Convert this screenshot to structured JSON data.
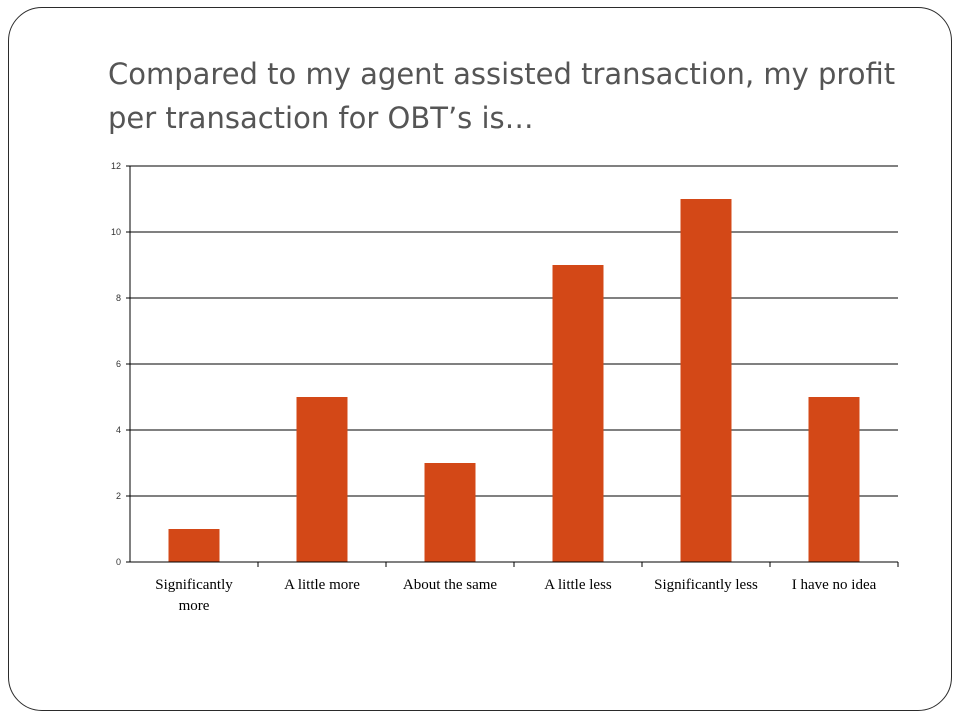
{
  "slide": {
    "title": "Compared to my agent assisted transaction, my profit per transaction for OBT’s is…"
  },
  "colors": {
    "bar": "#d34817",
    "grid": "#000000",
    "title": "#555555"
  },
  "chart_data": {
    "type": "bar",
    "title": "",
    "xlabel": "",
    "ylabel": "",
    "categories": [
      "Significantly more",
      "A little more",
      "About the same",
      "A little less",
      "Significantly less",
      "I have no idea"
    ],
    "category_label_lines": [
      [
        "Significantly",
        "more"
      ],
      [
        "A little more"
      ],
      [
        "About the same"
      ],
      [
        "A little less"
      ],
      [
        "Significantly less"
      ],
      [
        "I have no idea"
      ]
    ],
    "values": [
      1,
      5,
      3,
      9,
      11,
      5
    ],
    "ylim": [
      0,
      12
    ],
    "yticks": [
      0,
      2,
      4,
      6,
      8,
      10,
      12
    ],
    "grid": true,
    "legend": "none"
  }
}
